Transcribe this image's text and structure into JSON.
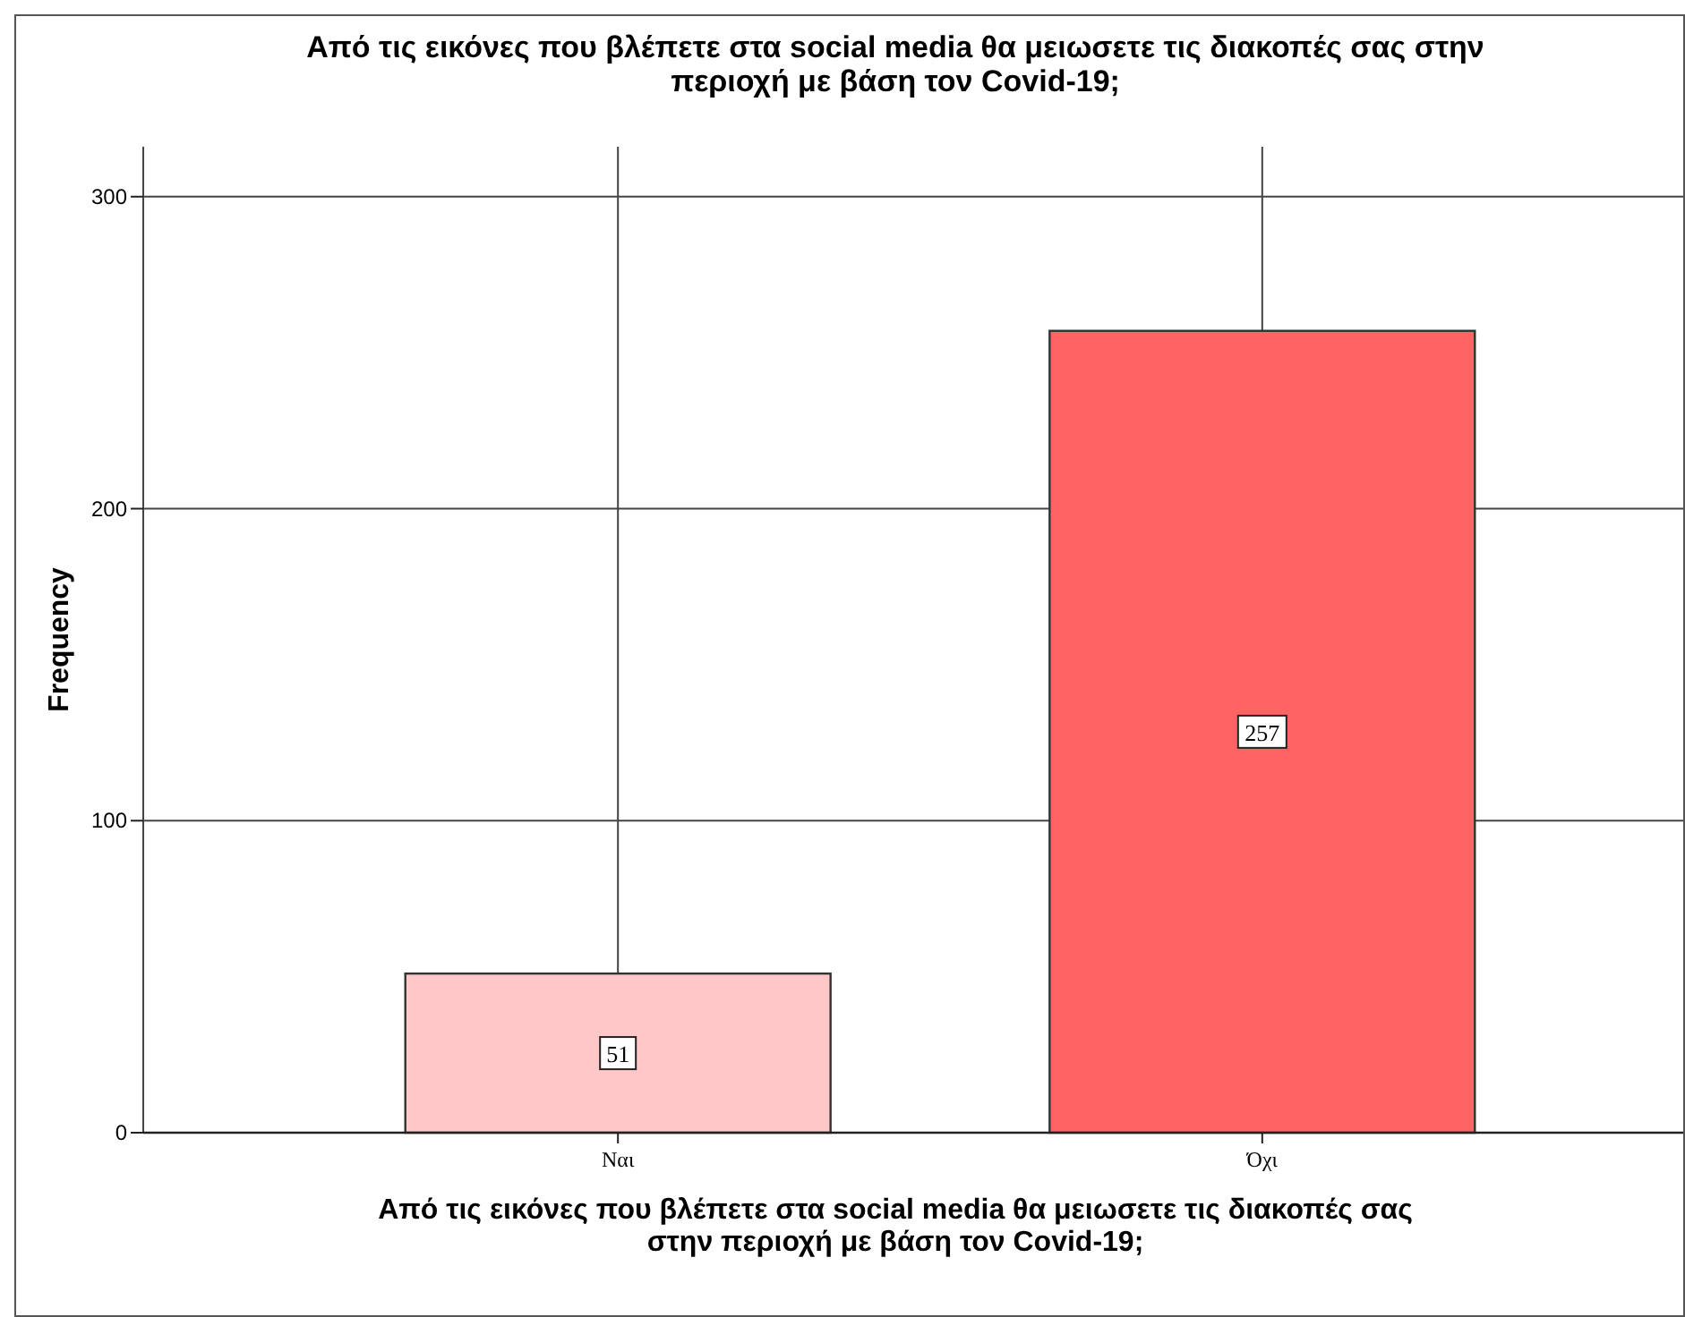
{
  "chart_data": {
    "type": "bar",
    "title": "Από τις εικόνες που βλέπετε στα social media θα μειωσετε τις διακοπές σας στην περιοχή με βάση τον Covid-19;",
    "xlabel": "Από τις εικόνες που βλέπετε στα social media θα μειωσετε τις διακοπές σας στην περιοχή με βάση τον Covid-19;",
    "ylabel": "Frequency",
    "categories": [
      "Ναι",
      "Όχι"
    ],
    "values": [
      51,
      257
    ],
    "colors": [
      "#ffc8c8",
      "#ff6464"
    ],
    "ylim": [
      0,
      316
    ],
    "yticks": [
      0,
      100,
      200,
      300
    ],
    "grid": true,
    "data_labels": true
  }
}
